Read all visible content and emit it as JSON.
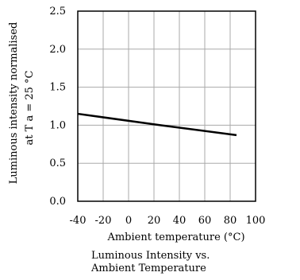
{
  "chart_data": {
    "type": "line",
    "title": "",
    "xlabel": "Ambient temperature (°C)",
    "ylabel_line1": "Luminous intensity normalised",
    "ylabel_line2": "at T a = 25 °C",
    "xlim": [
      -40,
      100
    ],
    "ylim": [
      0,
      2.5
    ],
    "xticks": [
      -40,
      -20,
      0,
      20,
      40,
      60,
      80,
      100
    ],
    "yticks": [
      0.0,
      0.5,
      1.0,
      1.5,
      2.0,
      2.5
    ],
    "xtick_labels": [
      "-40",
      "-20",
      "0",
      "20",
      "40",
      "60",
      "80",
      "100"
    ],
    "ytick_labels": [
      "0.0",
      "0.5",
      "1.0",
      "1.5",
      "2.0",
      "2.5"
    ],
    "grid": true,
    "series": [
      {
        "x": [
          -40,
          25,
          85
        ],
        "y": [
          1.15,
          1.0,
          0.87
        ]
      }
    ]
  },
  "caption": {
    "line1": "Luminous Intensity vs.",
    "line2": "Ambient Temperature"
  }
}
